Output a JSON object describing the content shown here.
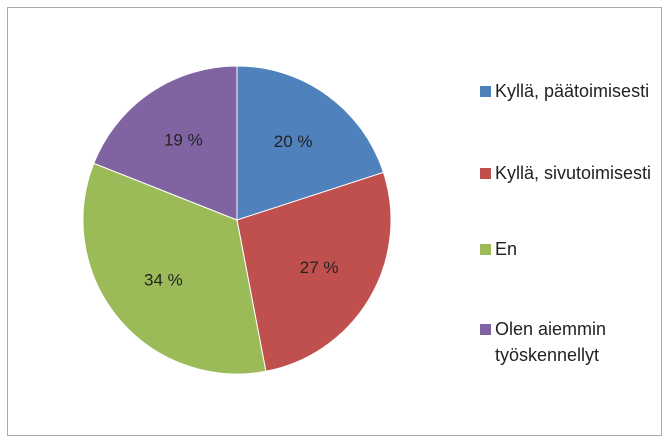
{
  "chart_data": {
    "type": "pie",
    "categories": [
      "Kyllä, päätoimisesti",
      "Kyllä, sivutoimisesti",
      "En",
      "Olen aiemmin työskennellyt"
    ],
    "values": [
      20,
      27,
      34,
      19
    ],
    "value_labels": [
      "20 %",
      "27 %",
      "34 %",
      "19 %"
    ],
    "colors": [
      "#4f81bd",
      "#c0504d",
      "#9bbb59",
      "#8064a2"
    ],
    "legend": "right"
  }
}
